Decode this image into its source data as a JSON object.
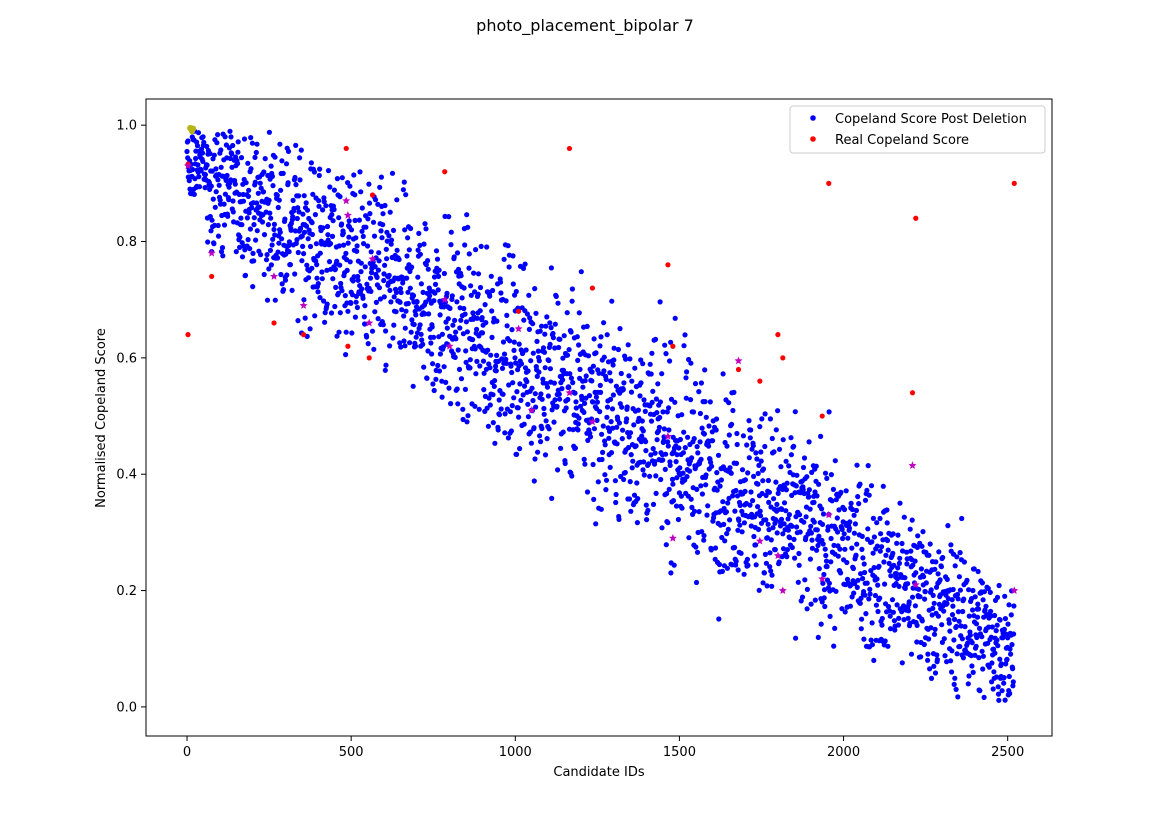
{
  "chart_data": {
    "type": "scatter",
    "title": "photo_placement_bipolar 7",
    "xlabel": "Candidate IDs",
    "ylabel": "Normalised Copeland Score",
    "xlim": [
      -125,
      2635
    ],
    "ylim": [
      -0.05,
      1.045
    ],
    "xticks": [
      0,
      500,
      1000,
      1500,
      2000,
      2500
    ],
    "xtick_labels": [
      "0",
      "500",
      "1000",
      "1500",
      "2000",
      "2500"
    ],
    "yticks": [
      0.0,
      0.2,
      0.4,
      0.6,
      0.8,
      1.0
    ],
    "ytick_labels": [
      "0.0",
      "0.2",
      "0.4",
      "0.6",
      "0.8",
      "1.0"
    ],
    "grid": false,
    "legend": {
      "placement": "top-right"
    },
    "series": [
      {
        "name": "Copeland Score Post Deletion",
        "color": "#0000ff",
        "marker": "dot",
        "n_points": 2520,
        "trend": {
          "x0": 0,
          "y0_center": 0.93,
          "x1": 2520,
          "y1_center": 0.1
        },
        "note_points_estimated": true
      },
      {
        "name": "Real Copeland Score",
        "color": "#ff0000",
        "marker": "dot",
        "points": [
          [
            3,
            0.933
          ],
          [
            3,
            0.64
          ],
          [
            75,
            0.74
          ],
          [
            265,
            0.66
          ],
          [
            355,
            0.64
          ],
          [
            485,
            0.96
          ],
          [
            490,
            0.62
          ],
          [
            555,
            0.6
          ],
          [
            565,
            0.88
          ],
          [
            785,
            0.92
          ],
          [
            1010,
            0.68
          ],
          [
            1165,
            0.96
          ],
          [
            1235,
            0.72
          ],
          [
            1465,
            0.76
          ],
          [
            1480,
            0.62
          ],
          [
            1680,
            0.58
          ],
          [
            1745,
            0.56
          ],
          [
            1800,
            0.64
          ],
          [
            1815,
            0.6
          ],
          [
            1935,
            0.5
          ],
          [
            1955,
            0.9
          ],
          [
            2210,
            0.54
          ],
          [
            2220,
            0.84
          ],
          [
            2520,
            0.9
          ]
        ]
      },
      {
        "color": "#c000c0",
        "marker": "star",
        "points": [
          [
            3,
            0.93
          ],
          [
            75,
            0.78
          ],
          [
            265,
            0.74
          ],
          [
            355,
            0.69
          ],
          [
            485,
            0.87
          ],
          [
            490,
            0.845
          ],
          [
            555,
            0.66
          ],
          [
            565,
            0.77
          ],
          [
            785,
            0.7
          ],
          [
            800,
            0.62
          ],
          [
            1010,
            0.65
          ],
          [
            1050,
            0.51
          ],
          [
            1165,
            0.54
          ],
          [
            1235,
            0.49
          ],
          [
            1465,
            0.465
          ],
          [
            1480,
            0.29
          ],
          [
            1680,
            0.595
          ],
          [
            1745,
            0.285
          ],
          [
            1800,
            0.26
          ],
          [
            1815,
            0.2
          ],
          [
            1935,
            0.22
          ],
          [
            1955,
            0.33
          ],
          [
            2210,
            0.415
          ],
          [
            2220,
            0.21
          ],
          [
            2520,
            0.2
          ]
        ]
      },
      {
        "color": "#b5b515",
        "marker": "dot",
        "points": [
          [
            10,
            0.995
          ],
          [
            15,
            0.99
          ],
          [
            18,
            0.994
          ]
        ]
      }
    ]
  }
}
